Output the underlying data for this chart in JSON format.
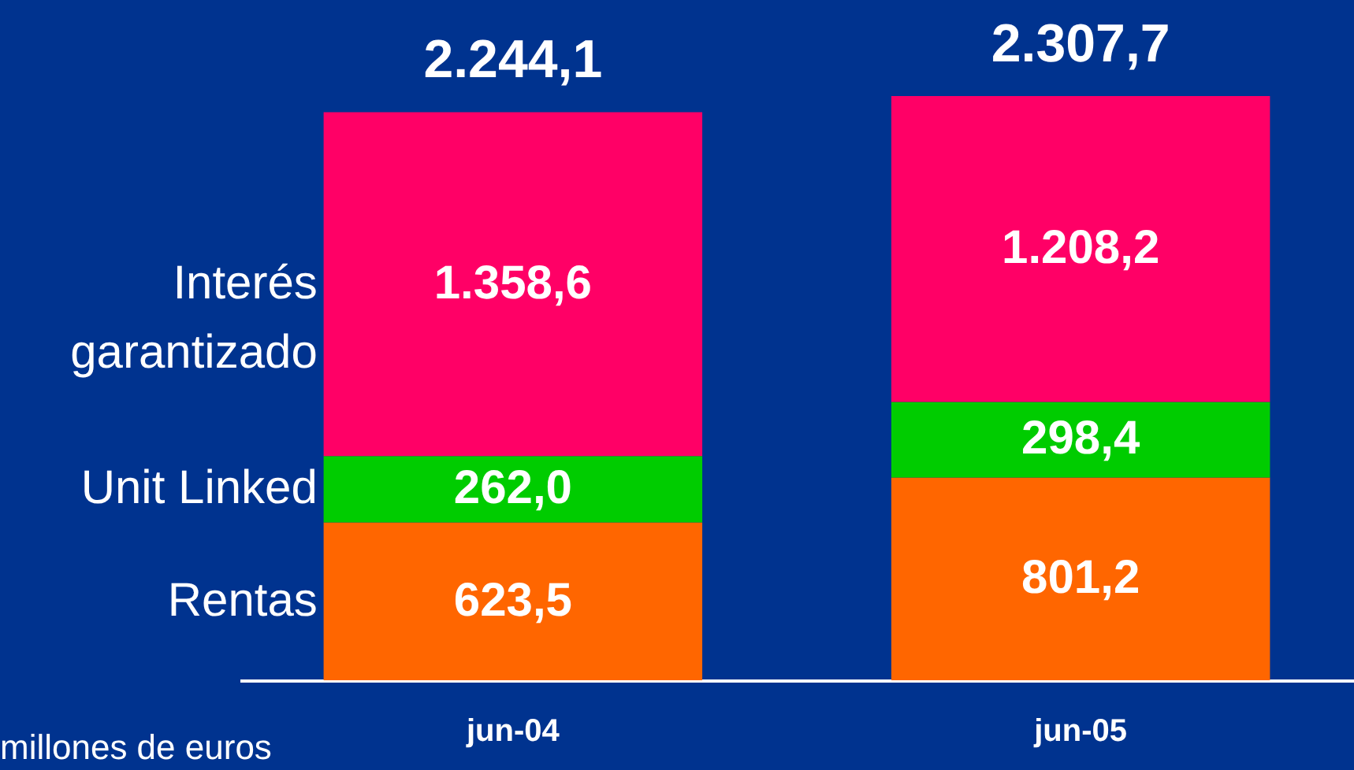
{
  "chart_data": {
    "type": "bar",
    "stacked": true,
    "categories": [
      "jun-04",
      "jun-05"
    ],
    "series": [
      {
        "name": "Rentas",
        "color": "#ff6600",
        "values": [
          623.5,
          801.2
        ],
        "value_labels": [
          "623,5",
          "801,2"
        ]
      },
      {
        "name": "Unit Linked",
        "color": "#00cc00",
        "values": [
          262.0,
          298.4
        ],
        "value_labels": [
          "262,0",
          "298,4"
        ]
      },
      {
        "name": "Interés garantizado",
        "color": "#ff0066",
        "values": [
          1358.6,
          1208.2
        ],
        "value_labels": [
          "1.358,6",
          "1.208,2"
        ]
      }
    ],
    "totals": [
      "2.244,1",
      "2.307,7"
    ],
    "annotations": [
      "millones de euros"
    ]
  }
}
